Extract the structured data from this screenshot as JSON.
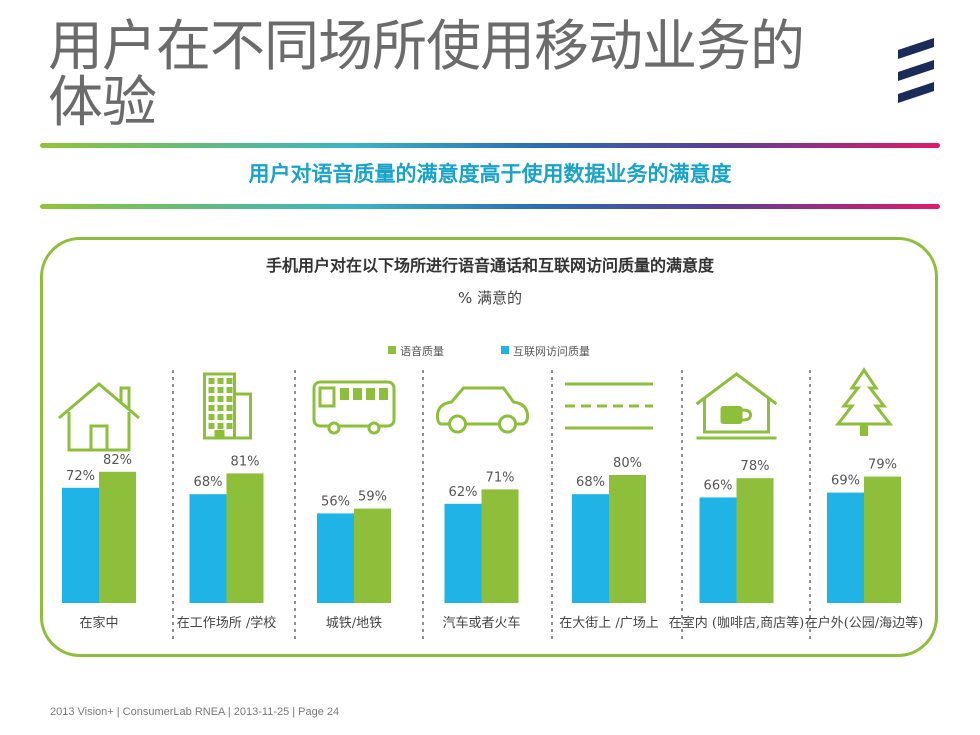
{
  "header": {
    "title": "用户在不同场所使用移动业务的体验",
    "subtitle": "用户对语音质量的满意度高于使用数据业务的满意度"
  },
  "footer": {
    "text": "2013 Vision+  |  ConsumerLab RNEA  |  2013-11-25  |  Page 24"
  },
  "colors": {
    "voice": "#8dbf3a",
    "internet": "#1fb3e6",
    "accent": "#1aa3c8",
    "logo": "#1a2b5a"
  },
  "chart_data": {
    "type": "bar",
    "title": "手机用户对在以下场所进行语音通话和互联网访问质量的满意度",
    "subtitle": "% 满意的",
    "categories": [
      "在家中",
      "在工作场所 /学校",
      "城铁/地铁",
      "汽车或者火车",
      "在大街上 /广场上",
      "在室内 (咖啡店,商店等)",
      "在户外(公园/海边等)"
    ],
    "icons": [
      "house-icon",
      "office-building-icon",
      "bus-icon",
      "car-icon",
      "street-icon",
      "cafe-icon",
      "tree-icon"
    ],
    "series": [
      {
        "name": "互联网访问质量",
        "values": [
          72,
          68,
          56,
          62,
          68,
          66,
          69
        ]
      },
      {
        "name": "语音质量",
        "values": [
          82,
          81,
          59,
          71,
          80,
          78,
          79
        ]
      }
    ],
    "value_suffix": "%",
    "ylim": [
      0,
      100
    ],
    "legend_position": "top-center"
  }
}
